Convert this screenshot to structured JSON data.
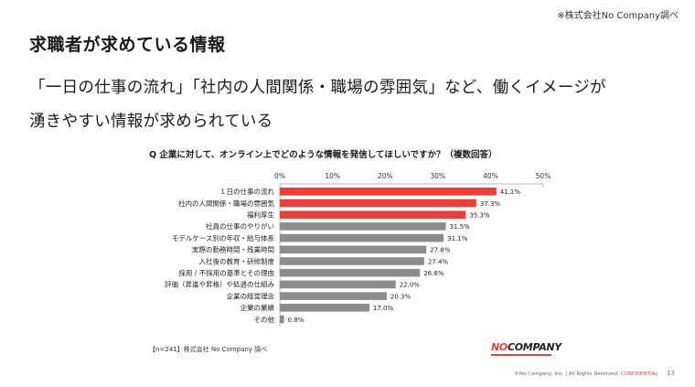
{
  "source_top": "※株式会社No Company調べ",
  "title": "求職者が求めている情報",
  "lead_line1": "「一日の仕事の流れ」「社内の人間関係・職場の雰囲気」など、働くイメージが",
  "lead_line2": "湧きやすい情報が求められている",
  "chart_note": "【n=241】株式会社 No Company 調べ",
  "logo": {
    "no": "NO",
    "rest": "COMPANY"
  },
  "footer": {
    "copyright": "©No Company, Inc. | All Rights Reserved.",
    "confidential": "CONFIDENTIAL",
    "page": "13"
  },
  "colors": {
    "highlight": "#e8403a",
    "normal": "#8c8c8c",
    "axis": "#bdbdbd"
  },
  "chart_data": {
    "type": "bar",
    "orientation": "horizontal",
    "title": "Q 企業に対して、オンライン上でどのような情報を発信してほしいですか？（複数回答）",
    "categories": [
      "１日の仕事の流れ",
      "社内の人間関係・職場の雰囲気",
      "福利厚生",
      "社員の仕事のやりがい",
      "モデルケース別の年収・給与体系",
      "実際の勤務時間・残業時間",
      "入社後の教育・研修制度",
      "採用 / 不採用の基準とその理由",
      "評価（昇進や昇格）や処遇の仕組み",
      "企業の経営理念",
      "企業の業績",
      "その他"
    ],
    "values": [
      41.1,
      37.3,
      35.3,
      31.5,
      31.1,
      27.8,
      27.4,
      26.6,
      22.0,
      20.3,
      17.0,
      0.8
    ],
    "value_labels": [
      "41.1%",
      "37.3%",
      "35.3%",
      "31.5%",
      "31.1%",
      "27.8%",
      "27.4%",
      "26.6%",
      "22.0%",
      "20.3%",
      "17.0%",
      "0.8%"
    ],
    "highlighted": [
      true,
      true,
      true,
      false,
      false,
      false,
      false,
      false,
      false,
      false,
      false,
      false
    ],
    "xlim": [
      0,
      50
    ],
    "ticks": [
      0,
      10,
      20,
      30,
      40,
      50
    ],
    "tick_labels": [
      "0%",
      "10%",
      "20%",
      "30%",
      "40%",
      "50%"
    ],
    "grid": false
  }
}
